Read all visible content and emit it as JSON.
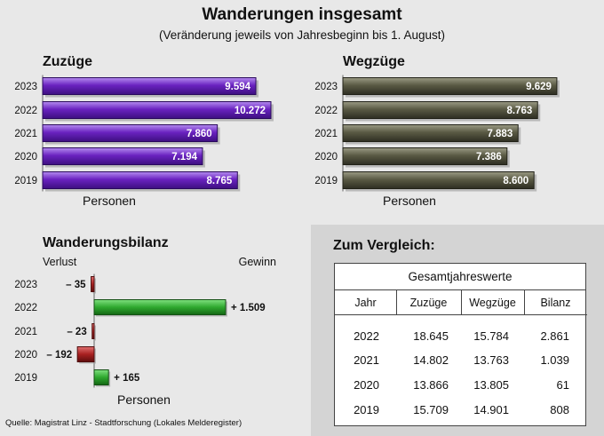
{
  "header": {
    "title": "Wanderungen insgesamt",
    "subtitle": "(Veränderung jeweils von Jahresbeginn bis 1. August)"
  },
  "colors": {
    "zuzuege": "#6a22c0",
    "wegzuege": "#5a5a44",
    "gewinn": "#2ea82e",
    "verlust": "#a82020"
  },
  "chart_data": [
    {
      "type": "bar",
      "orientation": "horizontal",
      "title": "Zuzüge",
      "xlabel": "Personen",
      "categories": [
        "2023",
        "2022",
        "2021",
        "2020",
        "2019"
      ],
      "values": [
        9594,
        10272,
        7860,
        7194,
        8765
      ],
      "value_labels": [
        "9.594",
        "10.272",
        "7.860",
        "7.194",
        "8.765"
      ],
      "xlim": [
        0,
        10272
      ]
    },
    {
      "type": "bar",
      "orientation": "horizontal",
      "title": "Wegzüge",
      "xlabel": "Personen",
      "categories": [
        "2023",
        "2022",
        "2021",
        "2020",
        "2019"
      ],
      "values": [
        9629,
        8763,
        7883,
        7386,
        8600
      ],
      "value_labels": [
        "9.629",
        "8.763",
        "7.883",
        "7.386",
        "8.600"
      ],
      "xlim": [
        0,
        10272
      ]
    },
    {
      "type": "bar",
      "orientation": "horizontal",
      "title": "Wanderungsbilanz",
      "xlabel": "Personen",
      "negative_label": "Verlust",
      "positive_label": "Gewinn",
      "categories": [
        "2023",
        "2022",
        "2021",
        "2020",
        "2019"
      ],
      "values": [
        -35,
        1509,
        -23,
        -192,
        165
      ],
      "value_labels": [
        "– 35",
        "+ 1.509",
        "– 23",
        "– 192",
        "+ 165"
      ]
    }
  ],
  "comparison": {
    "title": "Zum Vergleich:",
    "caption": "Gesamtjahreswerte",
    "columns": [
      "Jahr",
      "Zuzüge",
      "Wegzüge",
      "Bilanz"
    ],
    "rows": [
      [
        "2022",
        "18.645",
        "15.784",
        "2.861"
      ],
      [
        "2021",
        "14.802",
        "13.763",
        "1.039"
      ],
      [
        "2020",
        "13.866",
        "13.805",
        "61"
      ],
      [
        "2019",
        "15.709",
        "14.901",
        "808"
      ]
    ]
  },
  "source": "Quelle: Magistrat Linz - Stadtforschung (Lokales Melderegister)"
}
